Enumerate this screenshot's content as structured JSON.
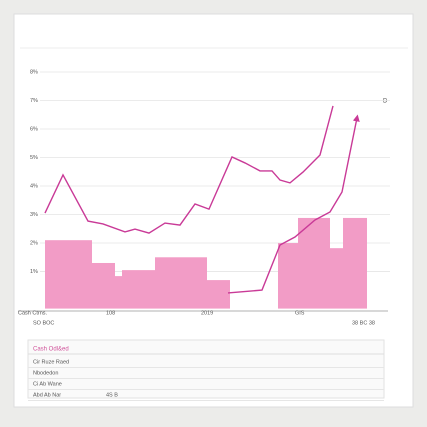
{
  "chart_data": {
    "type": "line",
    "corner_label": "D",
    "x_labels": [
      "Cash Ctrns.",
      "SO BOC",
      "108",
      "2019",
      "GIS",
      "38 BC 38"
    ],
    "xlim": [
      0,
      340
    ],
    "ylim": [
      -0.3,
      8
    ],
    "yticks": [
      {
        "value": 8,
        "label": "8%"
      },
      {
        "value": 7,
        "label": "7%"
      },
      {
        "value": 6,
        "label": "6%"
      },
      {
        "value": 5,
        "label": "5%"
      },
      {
        "value": 4,
        "label": "4%"
      },
      {
        "value": 3,
        "label": "3%"
      },
      {
        "value": 2,
        "label": "2%"
      },
      {
        "value": 1,
        "label": "1%"
      }
    ],
    "grid": true,
    "series": [
      {
        "color": "#c93a97",
        "x": [
          0,
          18,
          43,
          58,
          80,
          90,
          104,
          120,
          135,
          150,
          164,
          187,
          200,
          215,
          227,
          235,
          245,
          258,
          275,
          288
        ],
        "values": [
          3.05,
          4.39,
          2.77,
          2.67,
          2.39,
          2.49,
          2.35,
          2.7,
          2.63,
          3.37,
          3.19,
          5.02,
          4.81,
          4.53,
          4.53,
          4.21,
          4.11,
          4.49,
          5.09,
          6.81
        ]
      },
      {
        "color": "#c93a97",
        "arrow": true,
        "x": [
          183,
          217,
          235,
          250,
          270,
          285,
          297,
          312
        ],
        "values": [
          0.25,
          0.35,
          1.93,
          2.21,
          2.81,
          3.09,
          3.79,
          6.39
        ]
      }
    ],
    "steps": {
      "color": "#f29cc6",
      "edges": [
        0,
        47,
        70,
        77,
        110,
        162,
        185,
        233,
        253,
        285,
        298,
        322
      ],
      "values": [
        2.1,
        1.3,
        0.84,
        1.05,
        1.5,
        0.7,
        null,
        2.0,
        2.88,
        1.82,
        2.88
      ]
    },
    "panel": {
      "title": "Cash Odl&ed",
      "rows": [
        "Cir Ruze Raed",
        "Nbodedon",
        "Ci Ab Wane",
        "Abd Ab Nar"
      ],
      "row_notes": [
        "4S B"
      ]
    }
  }
}
